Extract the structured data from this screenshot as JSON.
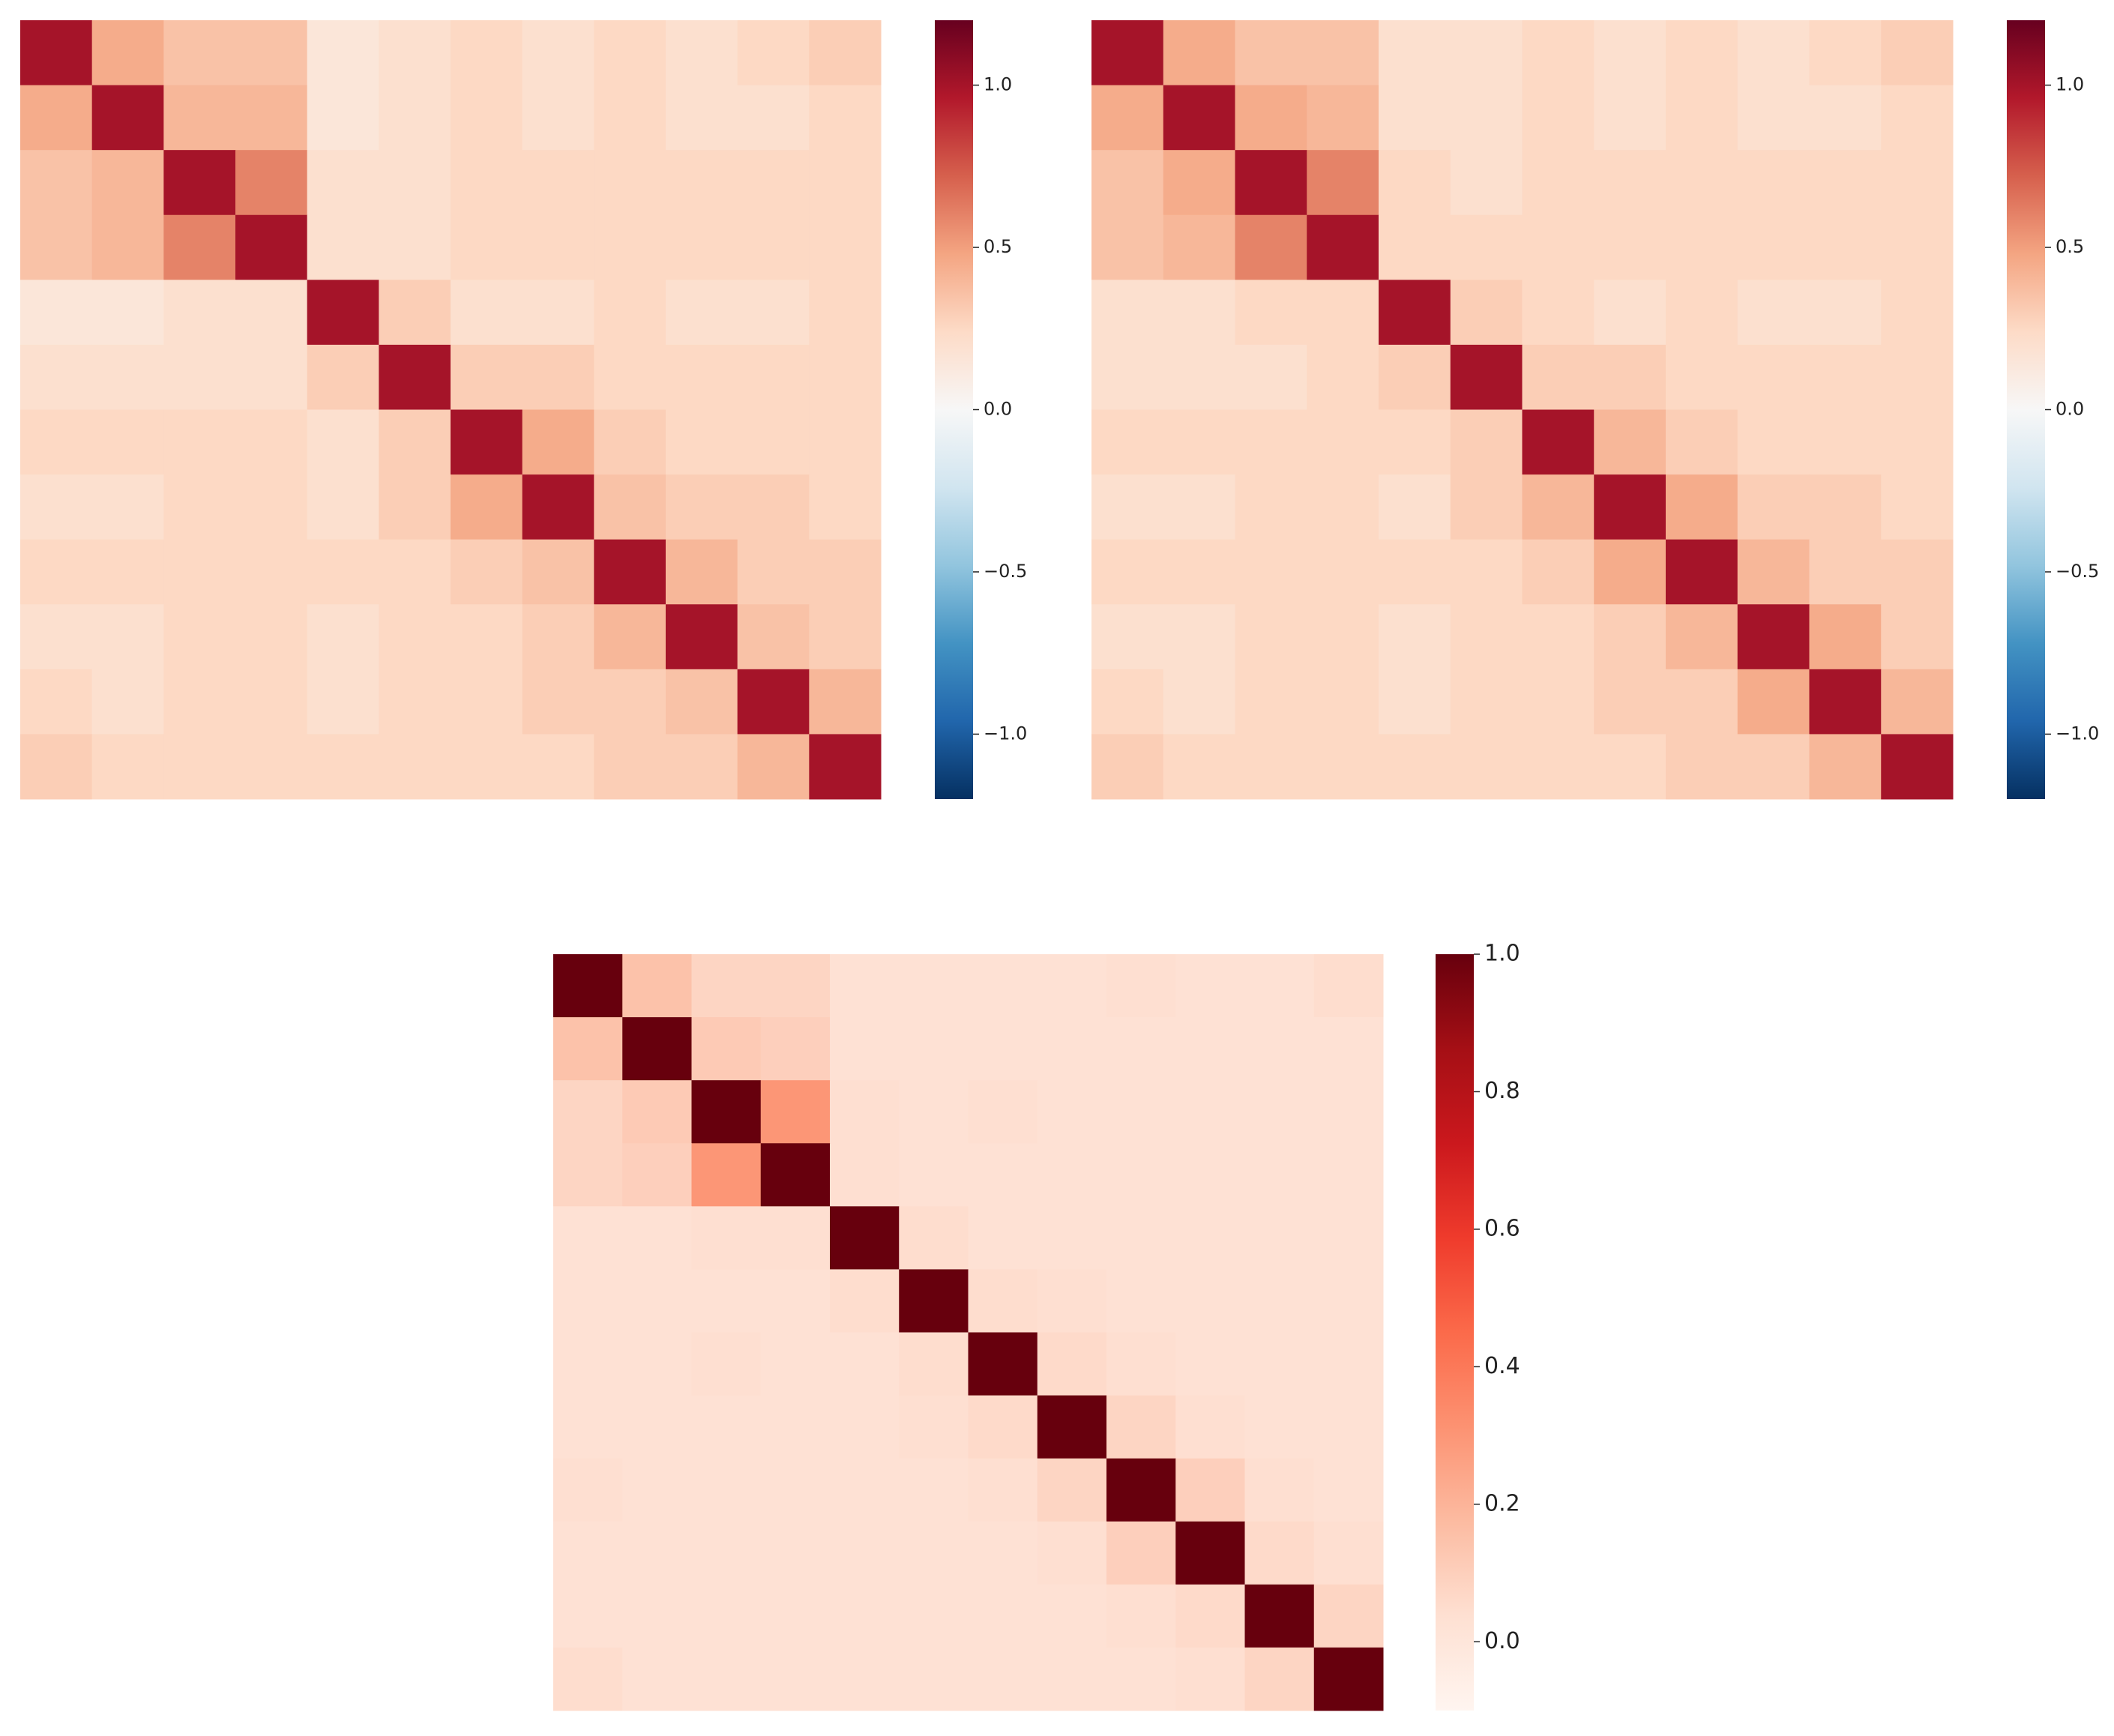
{
  "chart_data": [
    {
      "type": "heatmap",
      "z": [
        [
          1.0,
          0.45,
          0.35,
          0.35,
          0.15,
          0.2,
          0.25,
          0.2,
          0.25,
          0.2,
          0.25,
          0.3
        ],
        [
          0.45,
          1.0,
          0.4,
          0.4,
          0.15,
          0.2,
          0.25,
          0.2,
          0.25,
          0.2,
          0.2,
          0.25
        ],
        [
          0.35,
          0.4,
          1.0,
          0.6,
          0.2,
          0.2,
          0.25,
          0.25,
          0.25,
          0.25,
          0.25,
          0.25
        ],
        [
          0.35,
          0.4,
          0.6,
          1.0,
          0.2,
          0.2,
          0.25,
          0.25,
          0.25,
          0.25,
          0.25,
          0.25
        ],
        [
          0.15,
          0.15,
          0.2,
          0.2,
          1.0,
          0.3,
          0.2,
          0.2,
          0.25,
          0.2,
          0.2,
          0.25
        ],
        [
          0.2,
          0.2,
          0.2,
          0.2,
          0.3,
          1.0,
          0.3,
          0.3,
          0.25,
          0.25,
          0.25,
          0.25
        ],
        [
          0.25,
          0.25,
          0.25,
          0.25,
          0.2,
          0.3,
          1.0,
          0.45,
          0.3,
          0.25,
          0.25,
          0.25
        ],
        [
          0.2,
          0.2,
          0.25,
          0.25,
          0.2,
          0.3,
          0.45,
          1.0,
          0.35,
          0.3,
          0.3,
          0.25
        ],
        [
          0.25,
          0.25,
          0.25,
          0.25,
          0.25,
          0.25,
          0.3,
          0.35,
          1.0,
          0.4,
          0.3,
          0.3
        ],
        [
          0.2,
          0.2,
          0.25,
          0.25,
          0.2,
          0.25,
          0.25,
          0.3,
          0.4,
          1.0,
          0.35,
          0.3
        ],
        [
          0.25,
          0.2,
          0.25,
          0.25,
          0.2,
          0.25,
          0.25,
          0.3,
          0.3,
          0.35,
          1.0,
          0.4
        ],
        [
          0.3,
          0.25,
          0.25,
          0.25,
          0.25,
          0.25,
          0.25,
          0.25,
          0.3,
          0.3,
          0.4,
          1.0
        ]
      ],
      "zlim": [
        -1.2,
        1.2
      ],
      "colorbar_ticks": [
        {
          "value": -1.0,
          "label": "−1.0"
        },
        {
          "value": -0.5,
          "label": "−0.5"
        },
        {
          "value": 0,
          "label": "0.0"
        },
        0.5,
        {
          "value": 1.0,
          "label": "1.0"
        }
      ],
      "colors": [
        "#053061",
        "#2166ac",
        "#4393c3",
        "#92c5de",
        "#d1e5f0",
        "#f7f7f7",
        "#fddbc7",
        "#f4a582",
        "#d6604d",
        "#b2182b",
        "#67001f"
      ]
    },
    {
      "type": "heatmap",
      "z": [
        [
          1.0,
          0.45,
          0.35,
          0.35,
          0.2,
          0.2,
          0.25,
          0.2,
          0.25,
          0.2,
          0.25,
          0.3
        ],
        [
          0.45,
          1.0,
          0.45,
          0.4,
          0.2,
          0.2,
          0.25,
          0.2,
          0.25,
          0.2,
          0.2,
          0.25
        ],
        [
          0.35,
          0.45,
          1.0,
          0.6,
          0.25,
          0.2,
          0.25,
          0.25,
          0.25,
          0.25,
          0.25,
          0.25
        ],
        [
          0.35,
          0.4,
          0.6,
          1.0,
          0.25,
          0.25,
          0.25,
          0.25,
          0.25,
          0.25,
          0.25,
          0.25
        ],
        [
          0.2,
          0.2,
          0.25,
          0.25,
          1.0,
          0.3,
          0.25,
          0.2,
          0.25,
          0.2,
          0.2,
          0.25
        ],
        [
          0.2,
          0.2,
          0.2,
          0.25,
          0.3,
          1.0,
          0.3,
          0.3,
          0.25,
          0.25,
          0.25,
          0.25
        ],
        [
          0.25,
          0.25,
          0.25,
          0.25,
          0.25,
          0.3,
          1.0,
          0.4,
          0.3,
          0.25,
          0.25,
          0.25
        ],
        [
          0.2,
          0.2,
          0.25,
          0.25,
          0.2,
          0.3,
          0.4,
          1.0,
          0.45,
          0.3,
          0.3,
          0.25
        ],
        [
          0.25,
          0.25,
          0.25,
          0.25,
          0.25,
          0.25,
          0.3,
          0.45,
          1.0,
          0.4,
          0.3,
          0.3
        ],
        [
          0.2,
          0.2,
          0.25,
          0.25,
          0.2,
          0.25,
          0.25,
          0.3,
          0.4,
          1.0,
          0.45,
          0.3
        ],
        [
          0.25,
          0.2,
          0.25,
          0.25,
          0.2,
          0.25,
          0.25,
          0.3,
          0.3,
          0.45,
          1.0,
          0.4
        ],
        [
          0.3,
          0.25,
          0.25,
          0.25,
          0.25,
          0.25,
          0.25,
          0.25,
          0.3,
          0.3,
          0.4,
          1.0
        ]
      ],
      "zlim": [
        -1.2,
        1.2
      ],
      "colorbar_ticks": [
        {
          "value": -1.0,
          "label": "−1.0"
        },
        {
          "value": -0.5,
          "label": "−0.5"
        },
        {
          "value": 0,
          "label": "0.0"
        },
        0.5,
        {
          "value": 1.0,
          "label": "1.0"
        }
      ],
      "colors": [
        "#053061",
        "#2166ac",
        "#4393c3",
        "#92c5de",
        "#d1e5f0",
        "#f7f7f7",
        "#fddbc7",
        "#f4a582",
        "#d6604d",
        "#b2182b",
        "#67001f"
      ]
    },
    {
      "type": "heatmap",
      "z": [
        [
          1.0,
          0.15,
          0.08,
          0.08,
          0.03,
          0.03,
          0.03,
          0.03,
          0.04,
          0.03,
          0.03,
          0.05
        ],
        [
          0.15,
          1.0,
          0.12,
          0.1,
          0.03,
          0.03,
          0.03,
          0.03,
          0.03,
          0.03,
          0.03,
          0.03
        ],
        [
          0.08,
          0.12,
          1.0,
          0.3,
          0.04,
          0.03,
          0.04,
          0.03,
          0.03,
          0.03,
          0.03,
          0.03
        ],
        [
          0.08,
          0.1,
          0.3,
          1.0,
          0.04,
          0.03,
          0.03,
          0.03,
          0.03,
          0.03,
          0.03,
          0.03
        ],
        [
          0.03,
          0.03,
          0.04,
          0.04,
          1.0,
          0.05,
          0.03,
          0.03,
          0.03,
          0.03,
          0.03,
          0.03
        ],
        [
          0.03,
          0.03,
          0.03,
          0.03,
          0.05,
          1.0,
          0.05,
          0.04,
          0.03,
          0.03,
          0.03,
          0.03
        ],
        [
          0.03,
          0.03,
          0.04,
          0.03,
          0.03,
          0.05,
          1.0,
          0.06,
          0.04,
          0.03,
          0.03,
          0.03
        ],
        [
          0.03,
          0.03,
          0.03,
          0.03,
          0.03,
          0.04,
          0.06,
          1.0,
          0.08,
          0.04,
          0.03,
          0.03
        ],
        [
          0.04,
          0.03,
          0.03,
          0.03,
          0.03,
          0.03,
          0.04,
          0.08,
          1.0,
          0.1,
          0.04,
          0.03
        ],
        [
          0.03,
          0.03,
          0.03,
          0.03,
          0.03,
          0.03,
          0.03,
          0.04,
          0.1,
          1.0,
          0.06,
          0.04
        ],
        [
          0.03,
          0.03,
          0.03,
          0.03,
          0.03,
          0.03,
          0.03,
          0.03,
          0.04,
          0.06,
          1.0,
          0.08
        ],
        [
          0.05,
          0.03,
          0.03,
          0.03,
          0.03,
          0.03,
          0.03,
          0.03,
          0.03,
          0.04,
          0.08,
          1.0
        ]
      ],
      "zlim": [
        -0.1,
        1.0
      ],
      "colorbar_ticks": [
        {
          "value": 0,
          "label": "0.0"
        },
        0.2,
        0.4,
        0.6,
        0.8,
        {
          "value": 1.0,
          "label": "1.0"
        }
      ],
      "colors": [
        "#fff5f0",
        "#fee0d2",
        "#fcbba1",
        "#fc9272",
        "#fb6a4a",
        "#ef3b2c",
        "#cb181d",
        "#a50f15",
        "#67000d"
      ]
    }
  ]
}
